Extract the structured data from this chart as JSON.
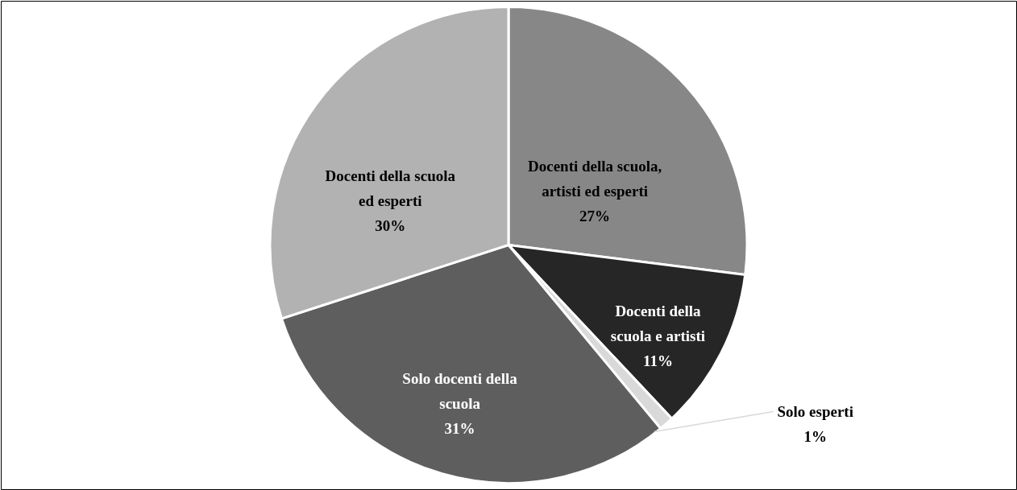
{
  "chart_data": {
    "type": "pie",
    "categories": [
      "Docenti della scuola, artisti ed esperti",
      "Docenti della scuola e artisti",
      "Solo esperti",
      "Solo docenti della scuola",
      "Docenti della scuola ed esperti"
    ],
    "values": [
      27,
      11,
      1,
      31,
      30
    ],
    "value_labels": [
      "27%",
      "11%",
      "1%",
      "31%",
      "30%"
    ],
    "colors": [
      "#878787",
      "#262626",
      "#d9d9d9",
      "#5e5e5e",
      "#b2b2b2"
    ]
  }
}
